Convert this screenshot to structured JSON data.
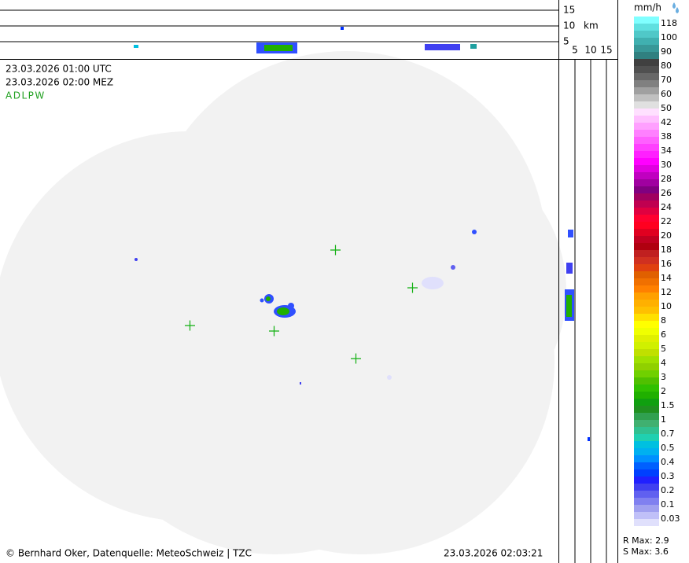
{
  "profile": {
    "top_labels": [
      "15",
      "10",
      "km",
      "5"
    ],
    "right_labels": [
      "5",
      "10",
      "15"
    ]
  },
  "info": {
    "utc": "23.03.2026 01:00 UTC",
    "mez": "23.03.2026 02:00 MEZ",
    "code": "ADLPW"
  },
  "legend": {
    "unit": "mm/h",
    "items": [
      {
        "label": "118",
        "colors": [
          "#80ffff",
          "#60e0e0"
        ]
      },
      {
        "label": "100",
        "colors": [
          "#50c8c8",
          "#40b0b0"
        ]
      },
      {
        "label": "90",
        "colors": [
          "#389898",
          "#308080"
        ]
      },
      {
        "label": "80",
        "colors": [
          "#404040",
          "#505050"
        ]
      },
      {
        "label": "70",
        "colors": [
          "#686868",
          "#808080"
        ]
      },
      {
        "label": "60",
        "colors": [
          "#a0a0a0",
          "#c0c0c0"
        ]
      },
      {
        "label": "50",
        "colors": [
          "#e0e0e0",
          "#ffe0ff"
        ]
      },
      {
        "label": "42",
        "colors": [
          "#ffc0ff",
          "#ffa0ff"
        ]
      },
      {
        "label": "38",
        "colors": [
          "#ff80ff",
          "#ff60ff"
        ]
      },
      {
        "label": "34",
        "colors": [
          "#ff40ff",
          "#ff20ff"
        ]
      },
      {
        "label": "30",
        "colors": [
          "#ff00ff",
          "#e000e0"
        ]
      },
      {
        "label": "28",
        "colors": [
          "#c000c0",
          "#a000a0"
        ]
      },
      {
        "label": "26",
        "colors": [
          "#800080",
          "#a00060"
        ]
      },
      {
        "label": "24",
        "colors": [
          "#c00050",
          "#e00040"
        ]
      },
      {
        "label": "22",
        "colors": [
          "#ff0030",
          "#ff0020"
        ]
      },
      {
        "label": "20",
        "colors": [
          "#e00020",
          "#c00020"
        ]
      },
      {
        "label": "18",
        "colors": [
          "#b00010",
          "#c02020"
        ]
      },
      {
        "label": "16",
        "colors": [
          "#d03020",
          "#e04010"
        ]
      },
      {
        "label": "14",
        "colors": [
          "#e06000",
          "#f07000"
        ]
      },
      {
        "label": "12",
        "colors": [
          "#ff8000",
          "#ffa000"
        ]
      },
      {
        "label": "10",
        "colors": [
          "#ffb000",
          "#ffc000"
        ]
      },
      {
        "label": "8",
        "colors": [
          "#ffe000",
          "#ffff00"
        ]
      },
      {
        "label": "6",
        "colors": [
          "#f0ff00",
          "#e0f000"
        ]
      },
      {
        "label": "5",
        "colors": [
          "#d0f000",
          "#c0e000"
        ]
      },
      {
        "label": "4",
        "colors": [
          "#a0e000",
          "#90d000"
        ]
      },
      {
        "label": "3",
        "colors": [
          "#70d000",
          "#50c000"
        ]
      },
      {
        "label": "2",
        "colors": [
          "#30c000",
          "#20b000"
        ]
      },
      {
        "label": "1.5",
        "colors": [
          "#10a010",
          "#209020"
        ]
      },
      {
        "label": "1",
        "colors": [
          "#30a050",
          "#40b070"
        ]
      },
      {
        "label": "0.7",
        "colors": [
          "#30c090",
          "#20d0b0"
        ]
      },
      {
        "label": "0.5",
        "colors": [
          "#00c0e0",
          "#00b0f0"
        ]
      },
      {
        "label": "0.4",
        "colors": [
          "#0090ff",
          "#0060ff"
        ]
      },
      {
        "label": "0.3",
        "colors": [
          "#0040ff",
          "#2020ff"
        ]
      },
      {
        "label": "0.2",
        "colors": [
          "#4040f0",
          "#6060f0"
        ]
      },
      {
        "label": "0.1",
        "colors": [
          "#8080f0",
          "#a0a0f0"
        ]
      },
      {
        "label": "0.03",
        "colors": [
          "#c0c0f8",
          "#e0e0fc"
        ]
      }
    ]
  },
  "footer": {
    "copyright": "© Bernhard Oker, Datenquelle: MeteoSchweiz | TZC",
    "timestamp": "23.03.2026 02:03:21",
    "r_max": "R Max: 2.9",
    "s_max": "S Max: 3.6"
  }
}
